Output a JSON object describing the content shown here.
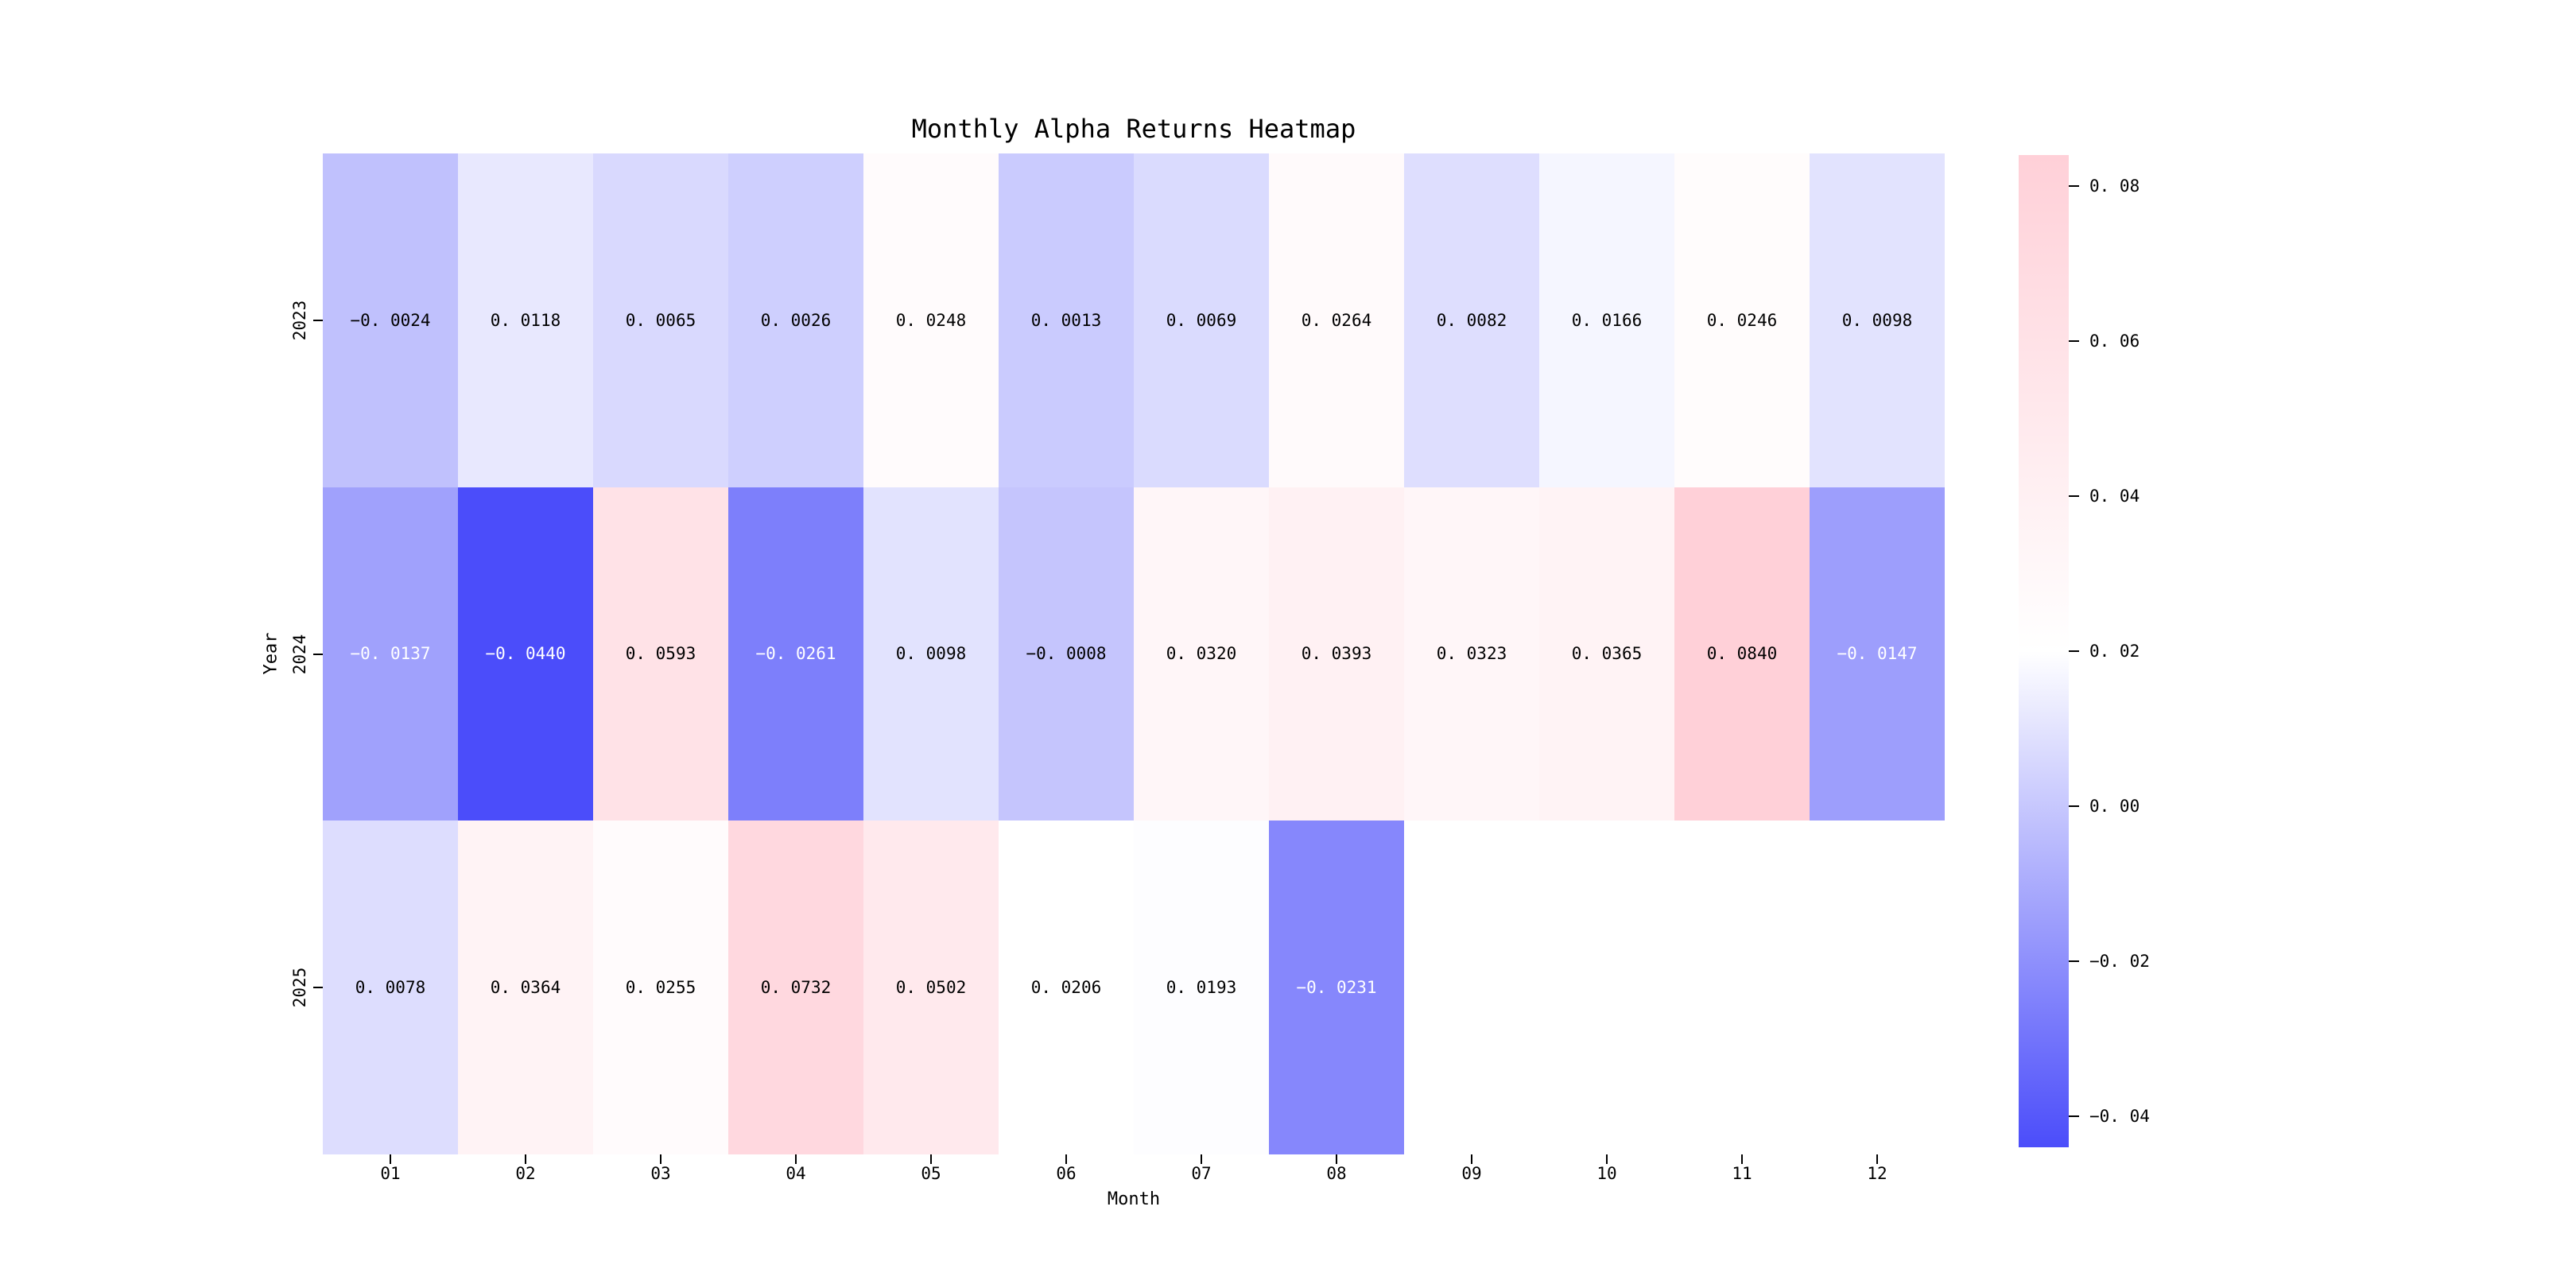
{
  "figure": {
    "background": "#ffffff"
  },
  "chart_data": {
    "type": "heatmap",
    "title": "Monthly Alpha Returns Heatmap",
    "xlabel": "Month",
    "ylabel": "Year",
    "x_categories": [
      "01",
      "02",
      "03",
      "04",
      "05",
      "06",
      "07",
      "08",
      "09",
      "10",
      "11",
      "12"
    ],
    "y_categories": [
      "2023",
      "2024",
      "2025"
    ],
    "rows": [
      [
        -0.0024,
        0.0118,
        0.0065,
        0.0026,
        0.0248,
        0.0013,
        0.0069,
        0.0264,
        0.0082,
        0.0166,
        0.0246,
        0.0098
      ],
      [
        -0.0137,
        -0.044,
        0.0593,
        -0.0261,
        0.0098,
        -0.0008,
        0.032,
        0.0393,
        0.0323,
        0.0365,
        0.084,
        -0.0147
      ],
      [
        0.0078,
        0.0364,
        0.0255,
        0.0732,
        0.0502,
        0.0206,
        0.0193,
        -0.0231,
        null,
        null,
        null,
        null
      ]
    ],
    "value_decimals": 4,
    "colorbar": {
      "vmin": -0.044,
      "vmax": 0.084,
      "ticks": [
        0.08,
        0.06,
        0.04,
        0.02,
        0.0,
        -0.02,
        -0.04
      ],
      "tick_decimals": 2
    },
    "colors": {
      "low": "#4b4dfa",
      "mid": "#ffffff",
      "high": "#ffd0d8",
      "annot_dark": "#000000",
      "annot_light": "#ffffff"
    },
    "grid": false,
    "legend": "colorbar-right"
  }
}
